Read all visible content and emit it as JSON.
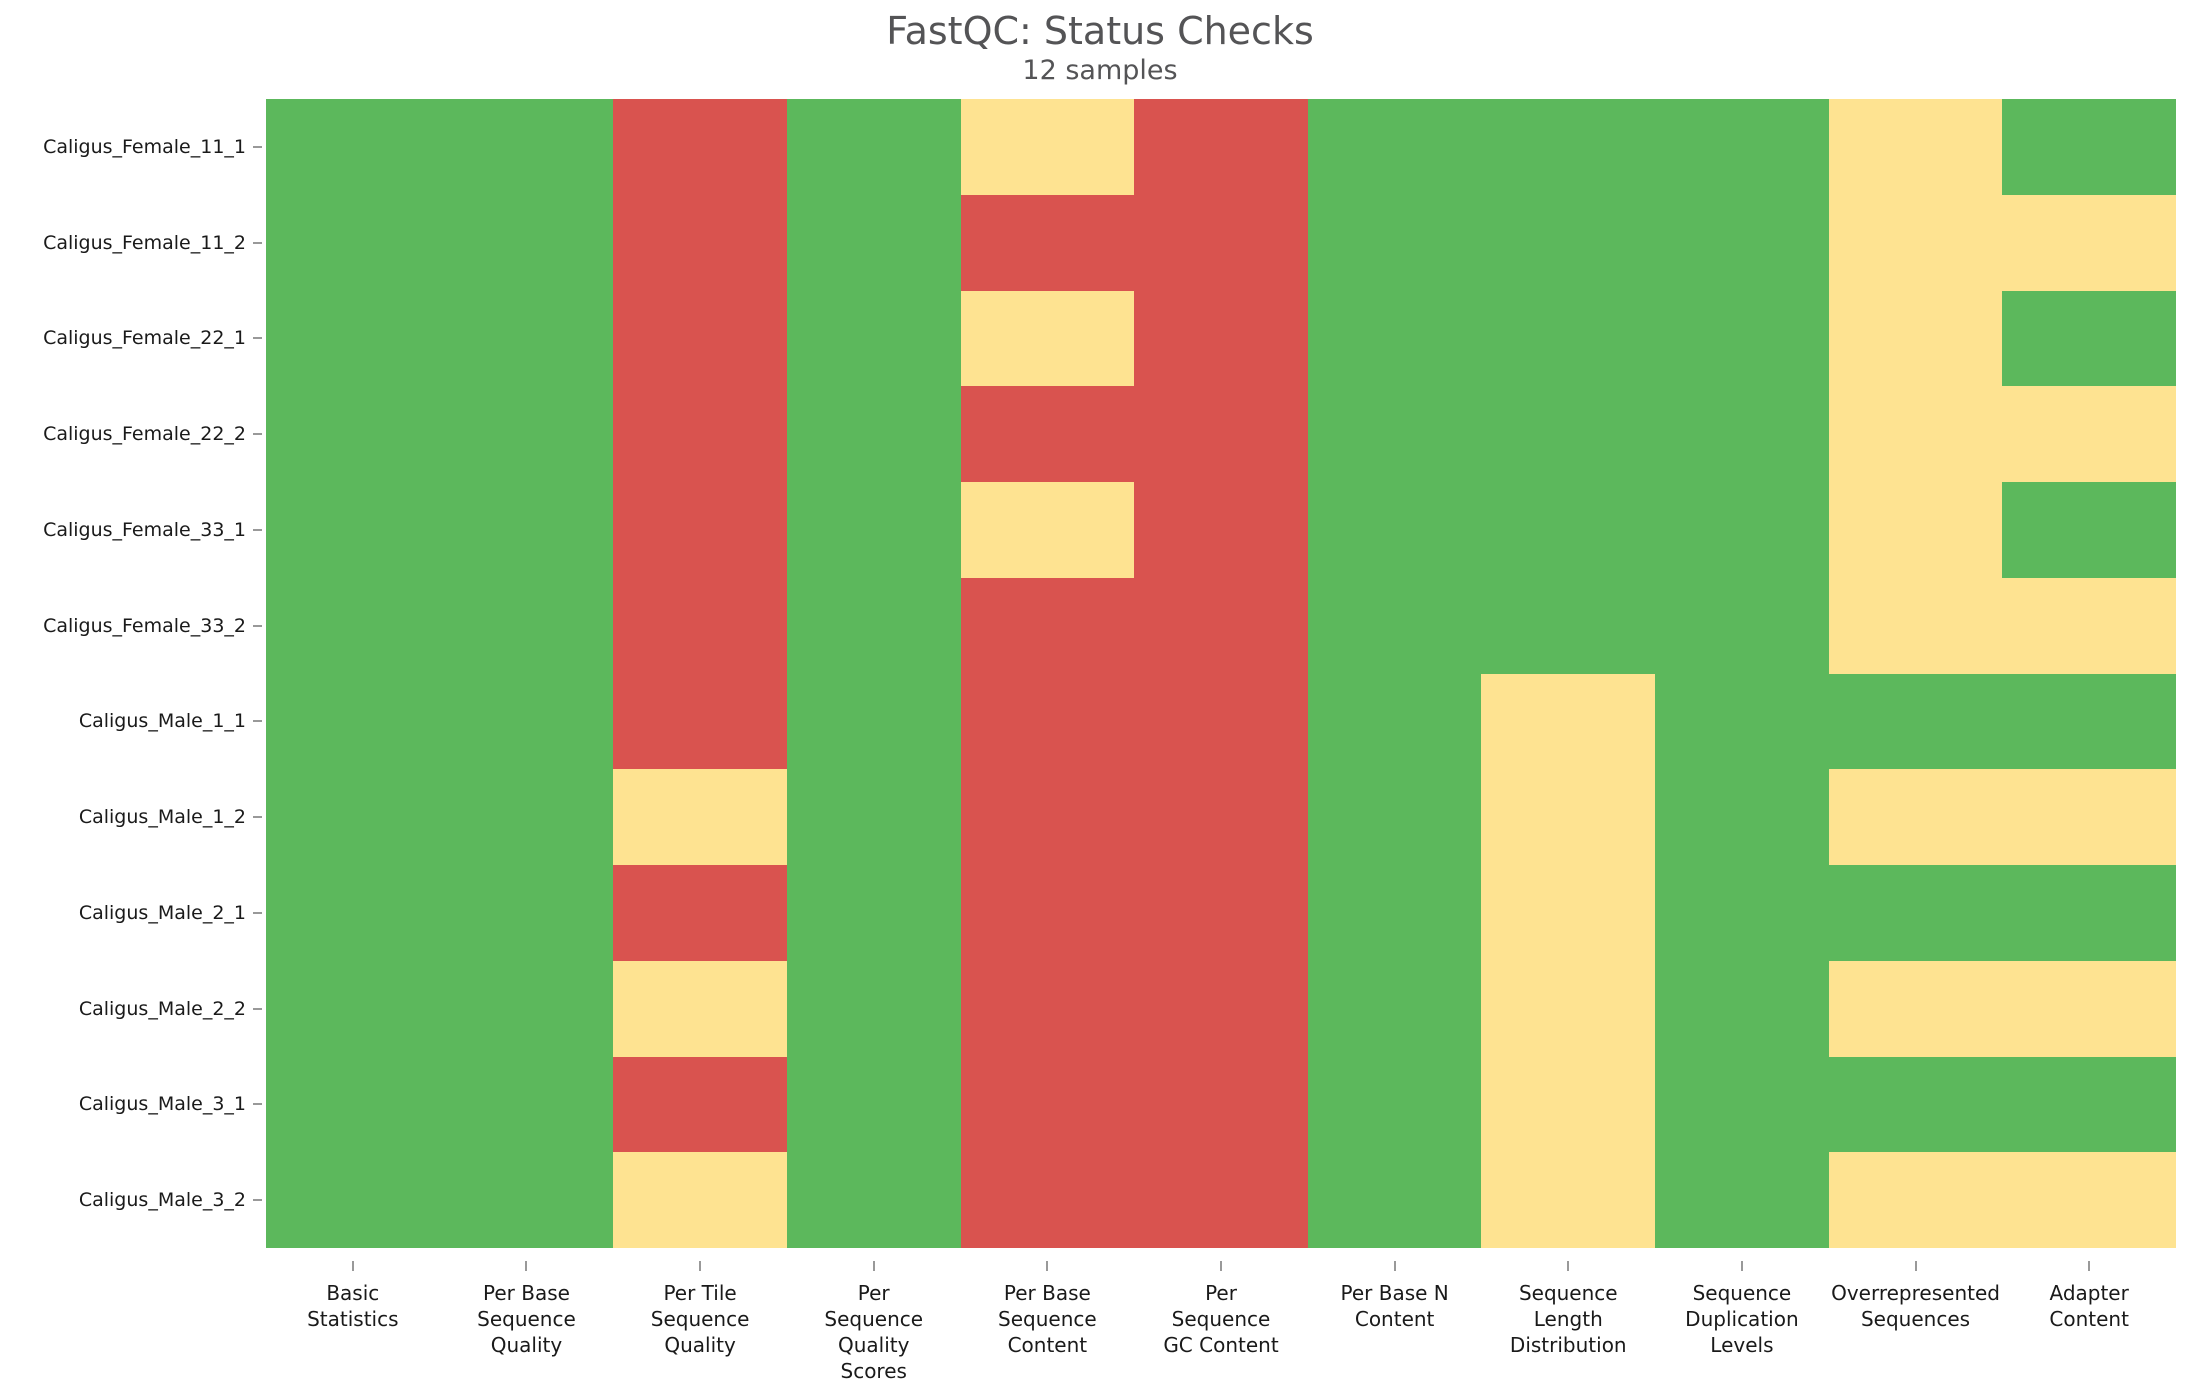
{
  "header": {
    "title": "FastQC: Status Checks",
    "subtitle": "12 samples"
  },
  "chart_data": {
    "type": "heatmap",
    "title": "FastQC: Status Checks",
    "subtitle": "12 samples",
    "rows": [
      "Caligus_Female_11_1",
      "Caligus_Female_11_2",
      "Caligus_Female_22_1",
      "Caligus_Female_22_2",
      "Caligus_Female_33_1",
      "Caligus_Female_33_2",
      "Caligus_Male_1_1",
      "Caligus_Male_1_2",
      "Caligus_Male_2_1",
      "Caligus_Male_2_2",
      "Caligus_Male_3_1",
      "Caligus_Male_3_2"
    ],
    "columns": [
      "Basic Statistics",
      "Per Base Sequence Quality",
      "Per Tile Sequence Quality",
      "Per Sequence Quality Scores",
      "Per Base Sequence Content",
      "Per Sequence GC Content",
      "Per Base N Content",
      "Sequence Length Distribution",
      "Sequence Duplication Levels",
      "Overrepresented Sequences",
      "Adapter Content"
    ],
    "column_label_lines": [
      [
        "Basic",
        "Statistics"
      ],
      [
        "Per Base",
        "Sequence",
        "Quality"
      ],
      [
        "Per Tile",
        "Sequence",
        "Quality"
      ],
      [
        "Per",
        "Sequence",
        "Quality",
        "Scores"
      ],
      [
        "Per Base",
        "Sequence",
        "Content"
      ],
      [
        "Per",
        "Sequence",
        "GC Content"
      ],
      [
        "Per Base N",
        "Content"
      ],
      [
        "Sequence",
        "Length",
        "Distribution"
      ],
      [
        "Sequence",
        "Duplication",
        "Levels"
      ],
      [
        "Overrepresented",
        "Sequences"
      ],
      [
        "Adapter",
        "Content"
      ]
    ],
    "values": [
      [
        "pass",
        "pass",
        "fail",
        "pass",
        "warn",
        "fail",
        "pass",
        "pass",
        "pass",
        "warn",
        "pass"
      ],
      [
        "pass",
        "pass",
        "fail",
        "pass",
        "fail",
        "fail",
        "pass",
        "pass",
        "pass",
        "warn",
        "warn"
      ],
      [
        "pass",
        "pass",
        "fail",
        "pass",
        "warn",
        "fail",
        "pass",
        "pass",
        "pass",
        "warn",
        "pass"
      ],
      [
        "pass",
        "pass",
        "fail",
        "pass",
        "fail",
        "fail",
        "pass",
        "pass",
        "pass",
        "warn",
        "warn"
      ],
      [
        "pass",
        "pass",
        "fail",
        "pass",
        "warn",
        "fail",
        "pass",
        "pass",
        "pass",
        "warn",
        "pass"
      ],
      [
        "pass",
        "pass",
        "fail",
        "pass",
        "fail",
        "fail",
        "pass",
        "pass",
        "pass",
        "warn",
        "warn"
      ],
      [
        "pass",
        "pass",
        "fail",
        "pass",
        "fail",
        "fail",
        "pass",
        "warn",
        "pass",
        "pass",
        "pass"
      ],
      [
        "pass",
        "pass",
        "warn",
        "pass",
        "fail",
        "fail",
        "pass",
        "warn",
        "pass",
        "warn",
        "warn"
      ],
      [
        "pass",
        "pass",
        "fail",
        "pass",
        "fail",
        "fail",
        "pass",
        "warn",
        "pass",
        "pass",
        "pass"
      ],
      [
        "pass",
        "pass",
        "warn",
        "pass",
        "fail",
        "fail",
        "pass",
        "warn",
        "pass",
        "warn",
        "warn"
      ],
      [
        "pass",
        "pass",
        "fail",
        "pass",
        "fail",
        "fail",
        "pass",
        "warn",
        "pass",
        "pass",
        "pass"
      ],
      [
        "pass",
        "pass",
        "warn",
        "pass",
        "fail",
        "fail",
        "pass",
        "warn",
        "pass",
        "warn",
        "warn"
      ]
    ],
    "status_colors": {
      "pass": "#5cb85c",
      "warn": "#fee391",
      "fail": "#d9534f"
    },
    "tick_color": "#999999",
    "label_color": "#1a1a1a",
    "title_color": "#545456",
    "legend": {
      "visible": false
    },
    "grid": false
  }
}
